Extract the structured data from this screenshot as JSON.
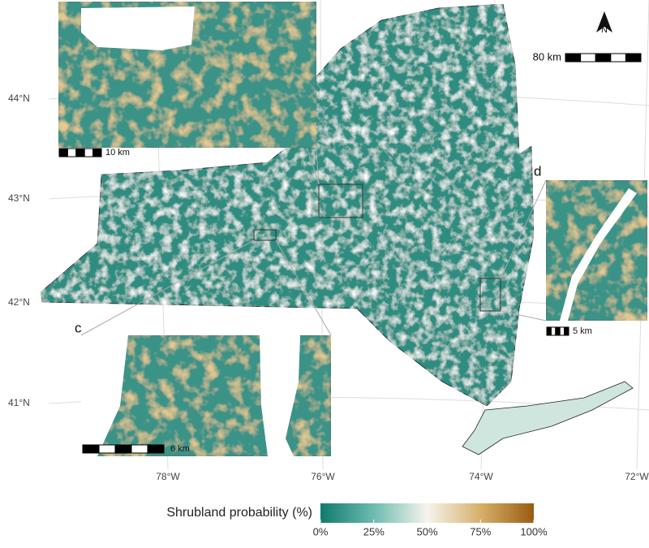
{
  "map": {
    "latitude_labels": [
      "44°N",
      "43°N",
      "42°N",
      "41°N"
    ],
    "longitude_labels": [
      "78°W",
      "76°W",
      "74°W",
      "72°W"
    ],
    "north_label": "N",
    "scale_bars": {
      "main": "80 km",
      "b": "10 km",
      "c": "6 km",
      "d": "5 km"
    },
    "panel_labels": [
      "c",
      "d"
    ],
    "legend": {
      "title": "Shrubland probability (%)",
      "ticks": [
        {
          "value": 0,
          "label": "0%"
        },
        {
          "value": 25,
          "label": "25%"
        },
        {
          "value": 50,
          "label": "50%"
        },
        {
          "value": 75,
          "label": "75%"
        },
        {
          "value": 100,
          "label": "100%"
        }
      ]
    }
  }
}
